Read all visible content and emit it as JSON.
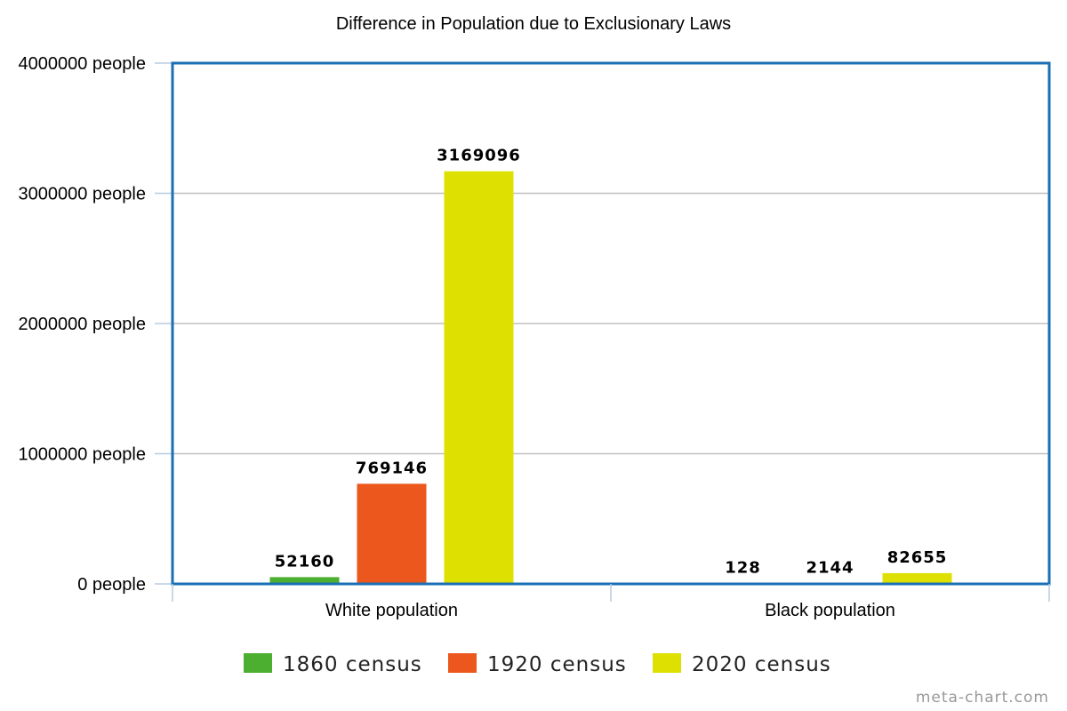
{
  "chart_data": {
    "type": "bar",
    "title": "Difference in Population due to Exclusionary Laws",
    "categories": [
      "White population",
      "Black population"
    ],
    "series": [
      {
        "name": "1860 census",
        "color": "#4caf2f",
        "values": [
          52160,
          128
        ],
        "labels": [
          "52160",
          "128"
        ]
      },
      {
        "name": "1920 census",
        "color": "#ec571e",
        "values": [
          769146,
          2144
        ],
        "labels": [
          "769146",
          "2144"
        ]
      },
      {
        "name": "2020 census",
        "color": "#dde000",
        "values": [
          3169096,
          82655
        ],
        "labels": [
          "3169096",
          "82655"
        ]
      }
    ],
    "ylim": [
      0,
      4000000
    ],
    "yticks": [
      {
        "value": 0,
        "label": "0 people"
      },
      {
        "value": 1000000,
        "label": "1000000 people"
      },
      {
        "value": 2000000,
        "label": "2000000 people"
      },
      {
        "value": 3000000,
        "label": "3000000 people"
      },
      {
        "value": 4000000,
        "label": "4000000 people"
      }
    ],
    "grid": true,
    "legend_position": "bottom"
  },
  "credit": "meta-chart.com",
  "colors": {
    "frame": "#1a6fb5",
    "grid": "#c0c0c0",
    "axis": "#b8cbe0"
  }
}
